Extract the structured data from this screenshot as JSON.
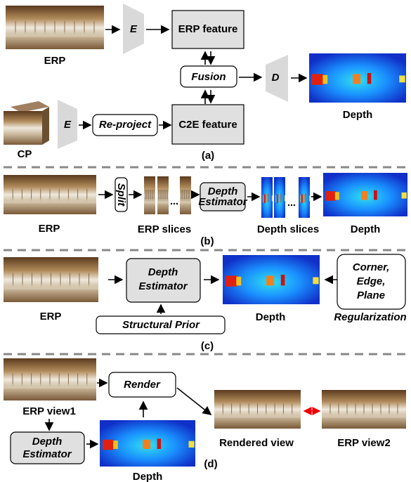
{
  "panel_a": {
    "erp_label": "ERP",
    "encoder_top": "E",
    "erp_feature": "ERP feature",
    "fusion": "Fusion",
    "decoder": "D",
    "depth_label": "Depth",
    "cp_label": "CP",
    "encoder_bottom": "E",
    "reproject": "Re-project",
    "c2e_feature": "C2E feature",
    "caption": "(a)"
  },
  "panel_b": {
    "erp_label": "ERP",
    "split": "Split",
    "erp_slices": "ERP slices",
    "depth_estimator": [
      "Depth",
      "Estimator"
    ],
    "depth_slices": "Depth slices",
    "depth_label": "Depth",
    "caption": "(b)"
  },
  "panel_c": {
    "erp_label": "ERP",
    "depth_estimator": [
      "Depth",
      "Estimator"
    ],
    "structural_prior": "Structural Prior",
    "depth_label": "Depth",
    "regularization_items": [
      "Corner,",
      "Edge,",
      "Plane"
    ],
    "regularization": "Regularization",
    "caption": "(c)"
  },
  "panel_d": {
    "erp_view1": "ERP view1",
    "render": "Render",
    "rendered_view": "Rendered view",
    "erp_view2": "ERP view2",
    "depth_estimator": [
      "Depth",
      "Estimator"
    ],
    "depth_label": "Depth",
    "caption": "(d)"
  }
}
